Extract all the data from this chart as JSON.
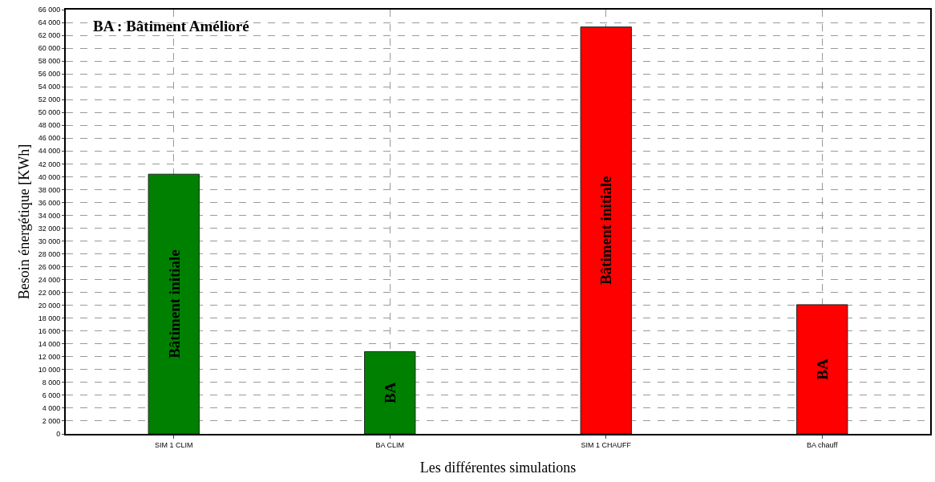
{
  "chart_data": {
    "type": "bar",
    "xlabel": "Les différentes simulations",
    "ylabel": "Besoin énergétique [KWh]",
    "categories": [
      "SIM 1 CLIM",
      "BA CLIM",
      "SIM 1 CHAUFF",
      "BA chauff"
    ],
    "values": [
      40400,
      12800,
      63300,
      20100
    ],
    "colors": [
      "#008000",
      "#008000",
      "#ff0000",
      "#ff0000"
    ],
    "ylim": [
      0,
      66000
    ],
    "yticks": [
      {
        "value": 0,
        "label": "0"
      },
      {
        "value": 2000,
        "label": "2 000"
      },
      {
        "value": 4000,
        "label": "4 000"
      },
      {
        "value": 6000,
        "label": "6 000"
      },
      {
        "value": 8000,
        "label": "8 000"
      },
      {
        "value": 10000,
        "label": "10 000"
      },
      {
        "value": 12000,
        "label": "12 000"
      },
      {
        "value": 14000,
        "label": "14 000"
      },
      {
        "value": 16000,
        "label": "16 000"
      },
      {
        "value": 18000,
        "label": "18 000"
      },
      {
        "value": 20000,
        "label": "20 000"
      },
      {
        "value": 22000,
        "label": "22 000"
      },
      {
        "value": 24000,
        "label": "24 000"
      },
      {
        "value": 26000,
        "label": "26 000"
      },
      {
        "value": 28000,
        "label": "28 000"
      },
      {
        "value": 30000,
        "label": "30 000"
      },
      {
        "value": 32000,
        "label": "32 000"
      },
      {
        "value": 34000,
        "label": "34 000"
      },
      {
        "value": 36000,
        "label": "36 000"
      },
      {
        "value": 38000,
        "label": "38 000"
      },
      {
        "value": 40000,
        "label": "40 000"
      },
      {
        "value": 42000,
        "label": "42 000"
      },
      {
        "value": 44000,
        "label": "44 000"
      },
      {
        "value": 46000,
        "label": "46 000"
      },
      {
        "value": 48000,
        "label": "48 000"
      },
      {
        "value": 50000,
        "label": "50 000"
      },
      {
        "value": 52000,
        "label": "52 000"
      },
      {
        "value": 54000,
        "label": "54 000"
      },
      {
        "value": 56000,
        "label": "56 000"
      },
      {
        "value": 58000,
        "label": "58 000"
      },
      {
        "value": 60000,
        "label": "60 000"
      },
      {
        "value": 62000,
        "label": "62 000"
      },
      {
        "value": 64000,
        "label": "64 000"
      },
      {
        "value": 66000,
        "label": "66 000"
      }
    ],
    "grid": true,
    "annotations": [
      "BA : Bâtiment Amélioré",
      "Bâtiment initiale",
      "BA",
      "Bâtiment initiale",
      "BA"
    ]
  }
}
